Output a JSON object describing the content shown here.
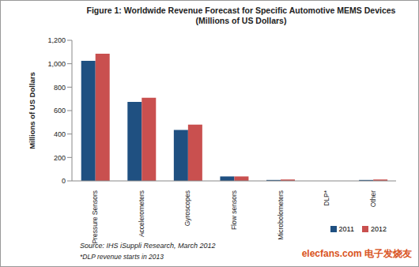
{
  "chart_data": {
    "type": "bar",
    "title": "Figure 1: Worldwide Revenue Forecast for Specific Automotive MEMS Devices",
    "subtitle": "(Millions of US Dollars)",
    "y_label": "Millions of US Dollars",
    "categories": [
      "Pressure Sensors",
      "Accelerometers",
      "Gyroscopes",
      "Flow sensors",
      "Microbolometers",
      "DLP*",
      "Other"
    ],
    "series": [
      {
        "name": "2011",
        "color": "#1f5081",
        "values": [
          1025,
          675,
          435,
          38,
          8,
          0,
          8
        ]
      },
      {
        "name": "2012",
        "color": "#c9504f",
        "values": [
          1085,
          710,
          480,
          38,
          12,
          0,
          12
        ]
      }
    ],
    "ylim": [
      0,
      1200
    ],
    "yticks": [
      0,
      200,
      400,
      600,
      800,
      {
        "value": 1000,
        "label": "1,000"
      },
      {
        "value": 1200,
        "label": "1,200"
      }
    ],
    "grid": false,
    "legend": "lower right",
    "annotations": [
      "Source: IHS iSuppli Research, March 2012",
      "*DLP revenue starts in 2013",
      "elecfans.com 电子发烧友"
    ]
  }
}
